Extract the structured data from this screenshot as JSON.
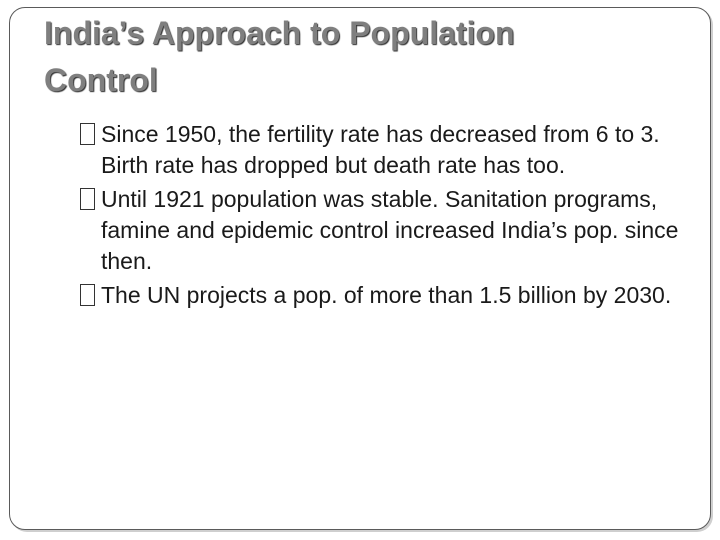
{
  "slide": {
    "title_line1": "India’s Approach to Population",
    "title_line2": "Control",
    "bullet_icon": "square-box-icon",
    "bullets": [
      "Since 1950, the fertility rate has decreased from 6 to 3. Birth rate has dropped but death rate has too.",
      "Until 1921 population was stable. Sanitation programs, famine and epidemic control increased India’s pop. since then.",
      "The UN projects a pop. of more than 1.5 billion by 2030."
    ]
  }
}
